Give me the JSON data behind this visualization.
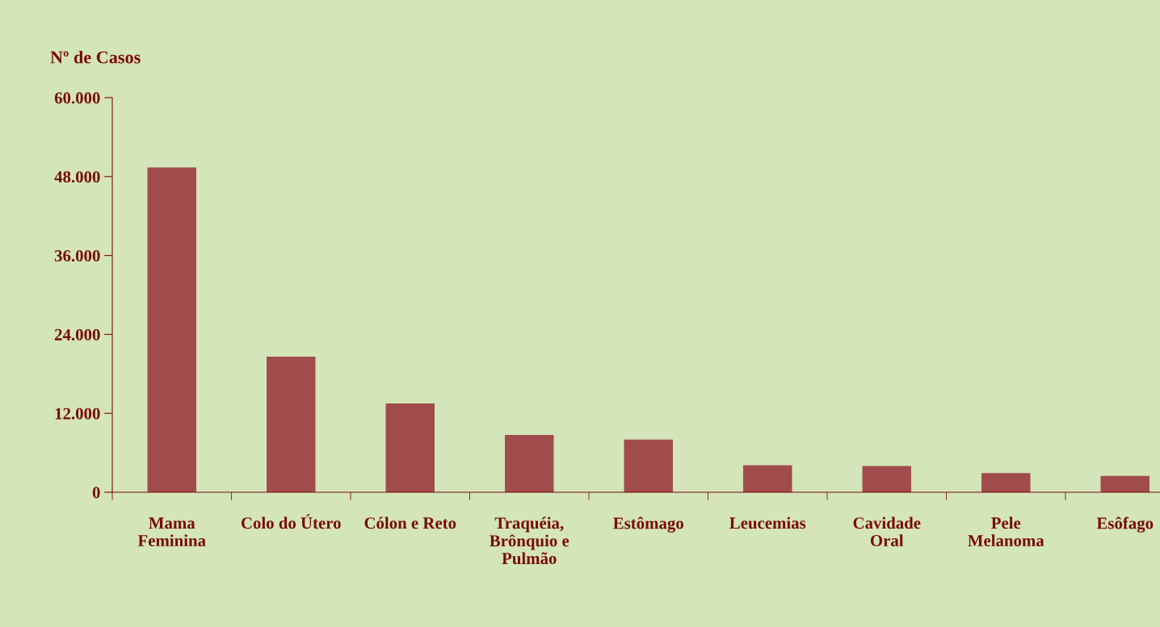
{
  "chart_data": {
    "type": "bar",
    "ylabel": "Nº de Casos",
    "categories": [
      "Mama\nFeminina",
      "Colo do Útero",
      "Cólon e Reto",
      "Traquéia,\nBrônquio e\nPulmão",
      "Estômago",
      "Leucemias",
      "Cavidade\nOral",
      "Pele\nMelanoma",
      "Esôfago"
    ],
    "values": [
      49400,
      20600,
      13500,
      8700,
      8000,
      4100,
      4000,
      2900,
      2500
    ],
    "color": "#a04c4c",
    "ylim": [
      0,
      60000
    ],
    "yticks": [
      {
        "value": 0,
        "label": "0"
      },
      {
        "value": 12000,
        "label": "12.000"
      },
      {
        "value": 24000,
        "label": "24.000"
      },
      {
        "value": 36000,
        "label": "36.000"
      },
      {
        "value": 48000,
        "label": "48.000"
      },
      {
        "value": 60000,
        "label": "60.000"
      }
    ],
    "grid": false
  }
}
